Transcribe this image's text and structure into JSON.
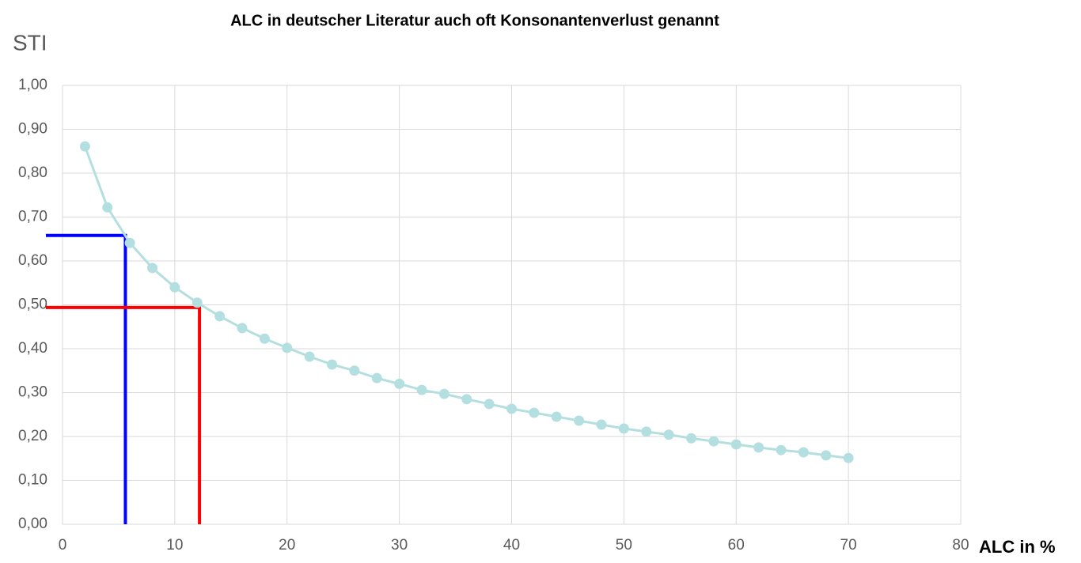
{
  "chart_data": {
    "type": "line",
    "title": "ALC in deutscher Literatur auch oft Konsonantenverlust genannt",
    "y_label": "STI",
    "x_label": "ALC in %",
    "x": [
      2,
      4,
      6,
      8,
      10,
      12,
      14,
      16,
      18,
      20,
      22,
      24,
      26,
      28,
      30,
      32,
      34,
      36,
      38,
      40,
      42,
      44,
      46,
      48,
      50,
      52,
      54,
      56,
      58,
      60,
      62,
      64,
      66,
      68,
      70
    ],
    "values": [
      0.861,
      0.722,
      0.641,
      0.584,
      0.54,
      0.505,
      0.474,
      0.447,
      0.423,
      0.402,
      0.382,
      0.364,
      0.35,
      0.333,
      0.32,
      0.306,
      0.297,
      0.285,
      0.274,
      0.263,
      0.254,
      0.245,
      0.236,
      0.227,
      0.218,
      0.211,
      0.204,
      0.196,
      0.189,
      0.182,
      0.175,
      0.169,
      0.164,
      0.157,
      0.151
    ],
    "color": "#b4dfe0",
    "xlim": [
      0,
      80
    ],
    "xticks": [
      0,
      10,
      20,
      30,
      40,
      50,
      60,
      70,
      80
    ],
    "ylim": [
      0,
      1
    ],
    "yticks": [
      {
        "value": 0,
        "label": "0,00"
      },
      {
        "value": 0.1,
        "label": "0,10"
      },
      {
        "value": 0.2,
        "label": "0,20"
      },
      {
        "value": 0.3,
        "label": "0,30"
      },
      {
        "value": 0.4,
        "label": "0,40"
      },
      {
        "value": 0.5,
        "label": "0,50"
      },
      {
        "value": 0.6,
        "label": "0,60"
      },
      {
        "value": 0.7,
        "label": "0,70"
      },
      {
        "value": 0.8,
        "label": "0,80"
      },
      {
        "value": 0.9,
        "label": "0,90"
      },
      {
        "value": 1,
        "label": "1,00"
      }
    ],
    "grid": true,
    "guides": [
      {
        "color": "#0000ff",
        "x": 5.6,
        "y": 0.658
      },
      {
        "color": "#ff0000",
        "x": 12.2,
        "y": 0.494
      }
    ]
  }
}
